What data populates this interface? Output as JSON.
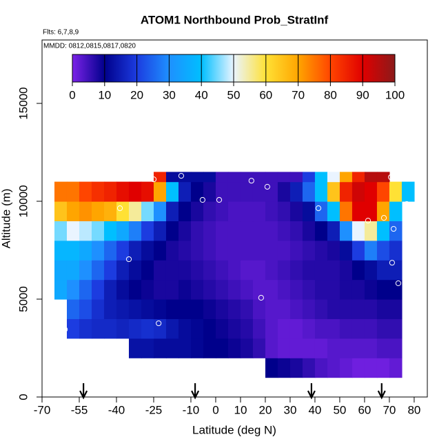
{
  "chart_data": {
    "type": "heatmap",
    "title": "ATOM1 Northbound Prob_StratInf",
    "subtitle": "Flts: 6,7,8,9",
    "annotation": "MMDD: 0812,0815,0817,0820",
    "x_label": "Latitude (deg N)",
    "y_label": "Altitude (m)",
    "xlim": [
      -70,
      85.3
    ],
    "ylim": [
      0,
      18240
    ],
    "xticks": [
      -70,
      -55,
      -40,
      -25,
      -10,
      0,
      10,
      20,
      30,
      40,
      50,
      60,
      70,
      80
    ],
    "yticks": [
      0,
      5000,
      10000,
      15000
    ],
    "x_bins": [
      -65,
      -60,
      -55,
      -50,
      -45,
      -40,
      -35,
      -30,
      -25,
      -20,
      -15,
      -10,
      -5,
      0,
      5,
      10,
      15,
      20,
      25,
      30,
      35,
      40,
      45,
      50,
      55,
      60,
      65,
      70,
      75,
      80
    ],
    "y_bins": [
      1000,
      2000,
      3000,
      4000,
      5000,
      6000,
      7000,
      8000,
      9000,
      10000,
      11000,
      11500
    ],
    "z": [
      [
        null,
        null,
        null,
        null,
        null,
        null,
        null,
        null,
        null,
        null,
        null,
        null,
        null,
        null,
        null,
        null,
        null,
        10,
        9,
        8,
        6,
        4,
        3,
        2,
        1,
        1,
        1,
        2,
        null
      ],
      [
        null,
        null,
        null,
        null,
        null,
        null,
        13,
        13,
        12,
        12,
        12,
        11,
        10,
        10,
        9,
        8,
        6,
        3,
        2,
        2,
        2,
        2,
        3,
        3,
        3,
        3,
        4,
        4,
        null
      ],
      [
        null,
        20,
        18,
        17,
        17,
        16,
        17,
        18,
        17,
        14,
        12,
        11,
        10,
        9,
        8,
        7,
        5,
        3,
        2,
        2,
        3,
        4,
        4,
        5,
        5,
        5,
        6,
        6,
        null
      ],
      [
        null,
        25,
        22,
        18,
        15,
        14,
        13,
        12,
        11,
        10,
        10,
        10,
        9,
        8,
        7,
        6,
        4,
        3,
        3,
        4,
        5,
        6,
        7,
        7,
        7,
        7,
        8,
        8,
        null
      ],
      [
        35,
        30,
        25,
        20,
        15,
        12,
        10,
        9,
        8,
        8,
        9,
        8,
        7,
        6,
        5,
        4,
        3,
        3,
        4,
        5,
        6,
        7,
        7,
        8,
        8,
        9,
        10,
        10,
        null
      ],
      [
        35,
        35,
        30,
        25,
        20,
        15,
        12,
        10,
        8,
        8,
        8,
        7,
        6,
        5,
        4,
        3,
        3,
        4,
        5,
        6,
        7,
        7,
        7,
        8,
        10,
        12,
        15,
        15,
        null
      ],
      [
        38,
        38,
        35,
        30,
        25,
        20,
        15,
        12,
        10,
        8,
        7,
        6,
        5,
        4,
        4,
        4,
        4,
        4,
        4,
        5,
        6,
        7,
        8,
        12,
        20,
        28,
        22,
        18,
        null
      ],
      [
        45,
        50,
        48,
        45,
        40,
        35,
        28,
        20,
        15,
        10,
        8,
        6,
        5,
        4,
        4,
        4,
        4,
        4,
        5,
        6,
        8,
        10,
        15,
        30,
        50,
        55,
        40,
        25,
        null
      ],
      [
        65,
        70,
        72,
        70,
        68,
        60,
        55,
        45,
        30,
        15,
        10,
        8,
        6,
        5,
        4,
        4,
        4,
        5,
        6,
        8,
        12,
        25,
        40,
        75,
        90,
        90,
        70,
        40,
        null
      ],
      [
        75,
        75,
        80,
        83,
        85,
        88,
        90,
        88,
        70,
        40,
        15,
        10,
        8,
        5,
        5,
        5,
        5,
        5,
        8,
        15,
        25,
        40,
        65,
        85,
        92,
        90,
        80,
        60,
        40
      ],
      [
        null,
        null,
        null,
        null,
        null,
        null,
        null,
        null,
        85,
        12,
        12,
        12,
        12,
        5,
        5,
        5,
        5,
        5,
        5,
        5,
        20,
        40,
        50,
        70,
        85,
        95,
        95,
        null,
        null
      ]
    ],
    "colorbar": {
      "lim": [
        0,
        100
      ],
      "ticks": [
        0,
        10,
        20,
        30,
        40,
        50,
        60,
        70,
        80,
        90,
        100
      ],
      "colors": [
        "#7b22e8",
        "#00008b",
        "#1c3ce0",
        "#1e90ff",
        "#00bfff",
        "#eaf4ff",
        "#ffe135",
        "#ffa500",
        "#ff4500",
        "#e00000",
        "#8b1a1a"
      ]
    },
    "points": {
      "x": [
        -60.8,
        -38.6,
        -35,
        -23,
        -25,
        -13.9,
        -5.3,
        1.4,
        14.4,
        18.3,
        20.8,
        41.4,
        61.4,
        67.8,
        70.6,
        71.7,
        71.1,
        73.6,
        77
      ],
      "y": [
        3450,
        9645,
        7040,
        3766,
        11120,
        11300,
        10070,
        10070,
        11050,
        5070,
        10740,
        9645,
        9010,
        9150,
        11230,
        8590,
        6860,
        5810,
        9860
      ]
    },
    "arrows": [
      -53.3,
      -8.3,
      38.6,
      66.9
    ]
  }
}
